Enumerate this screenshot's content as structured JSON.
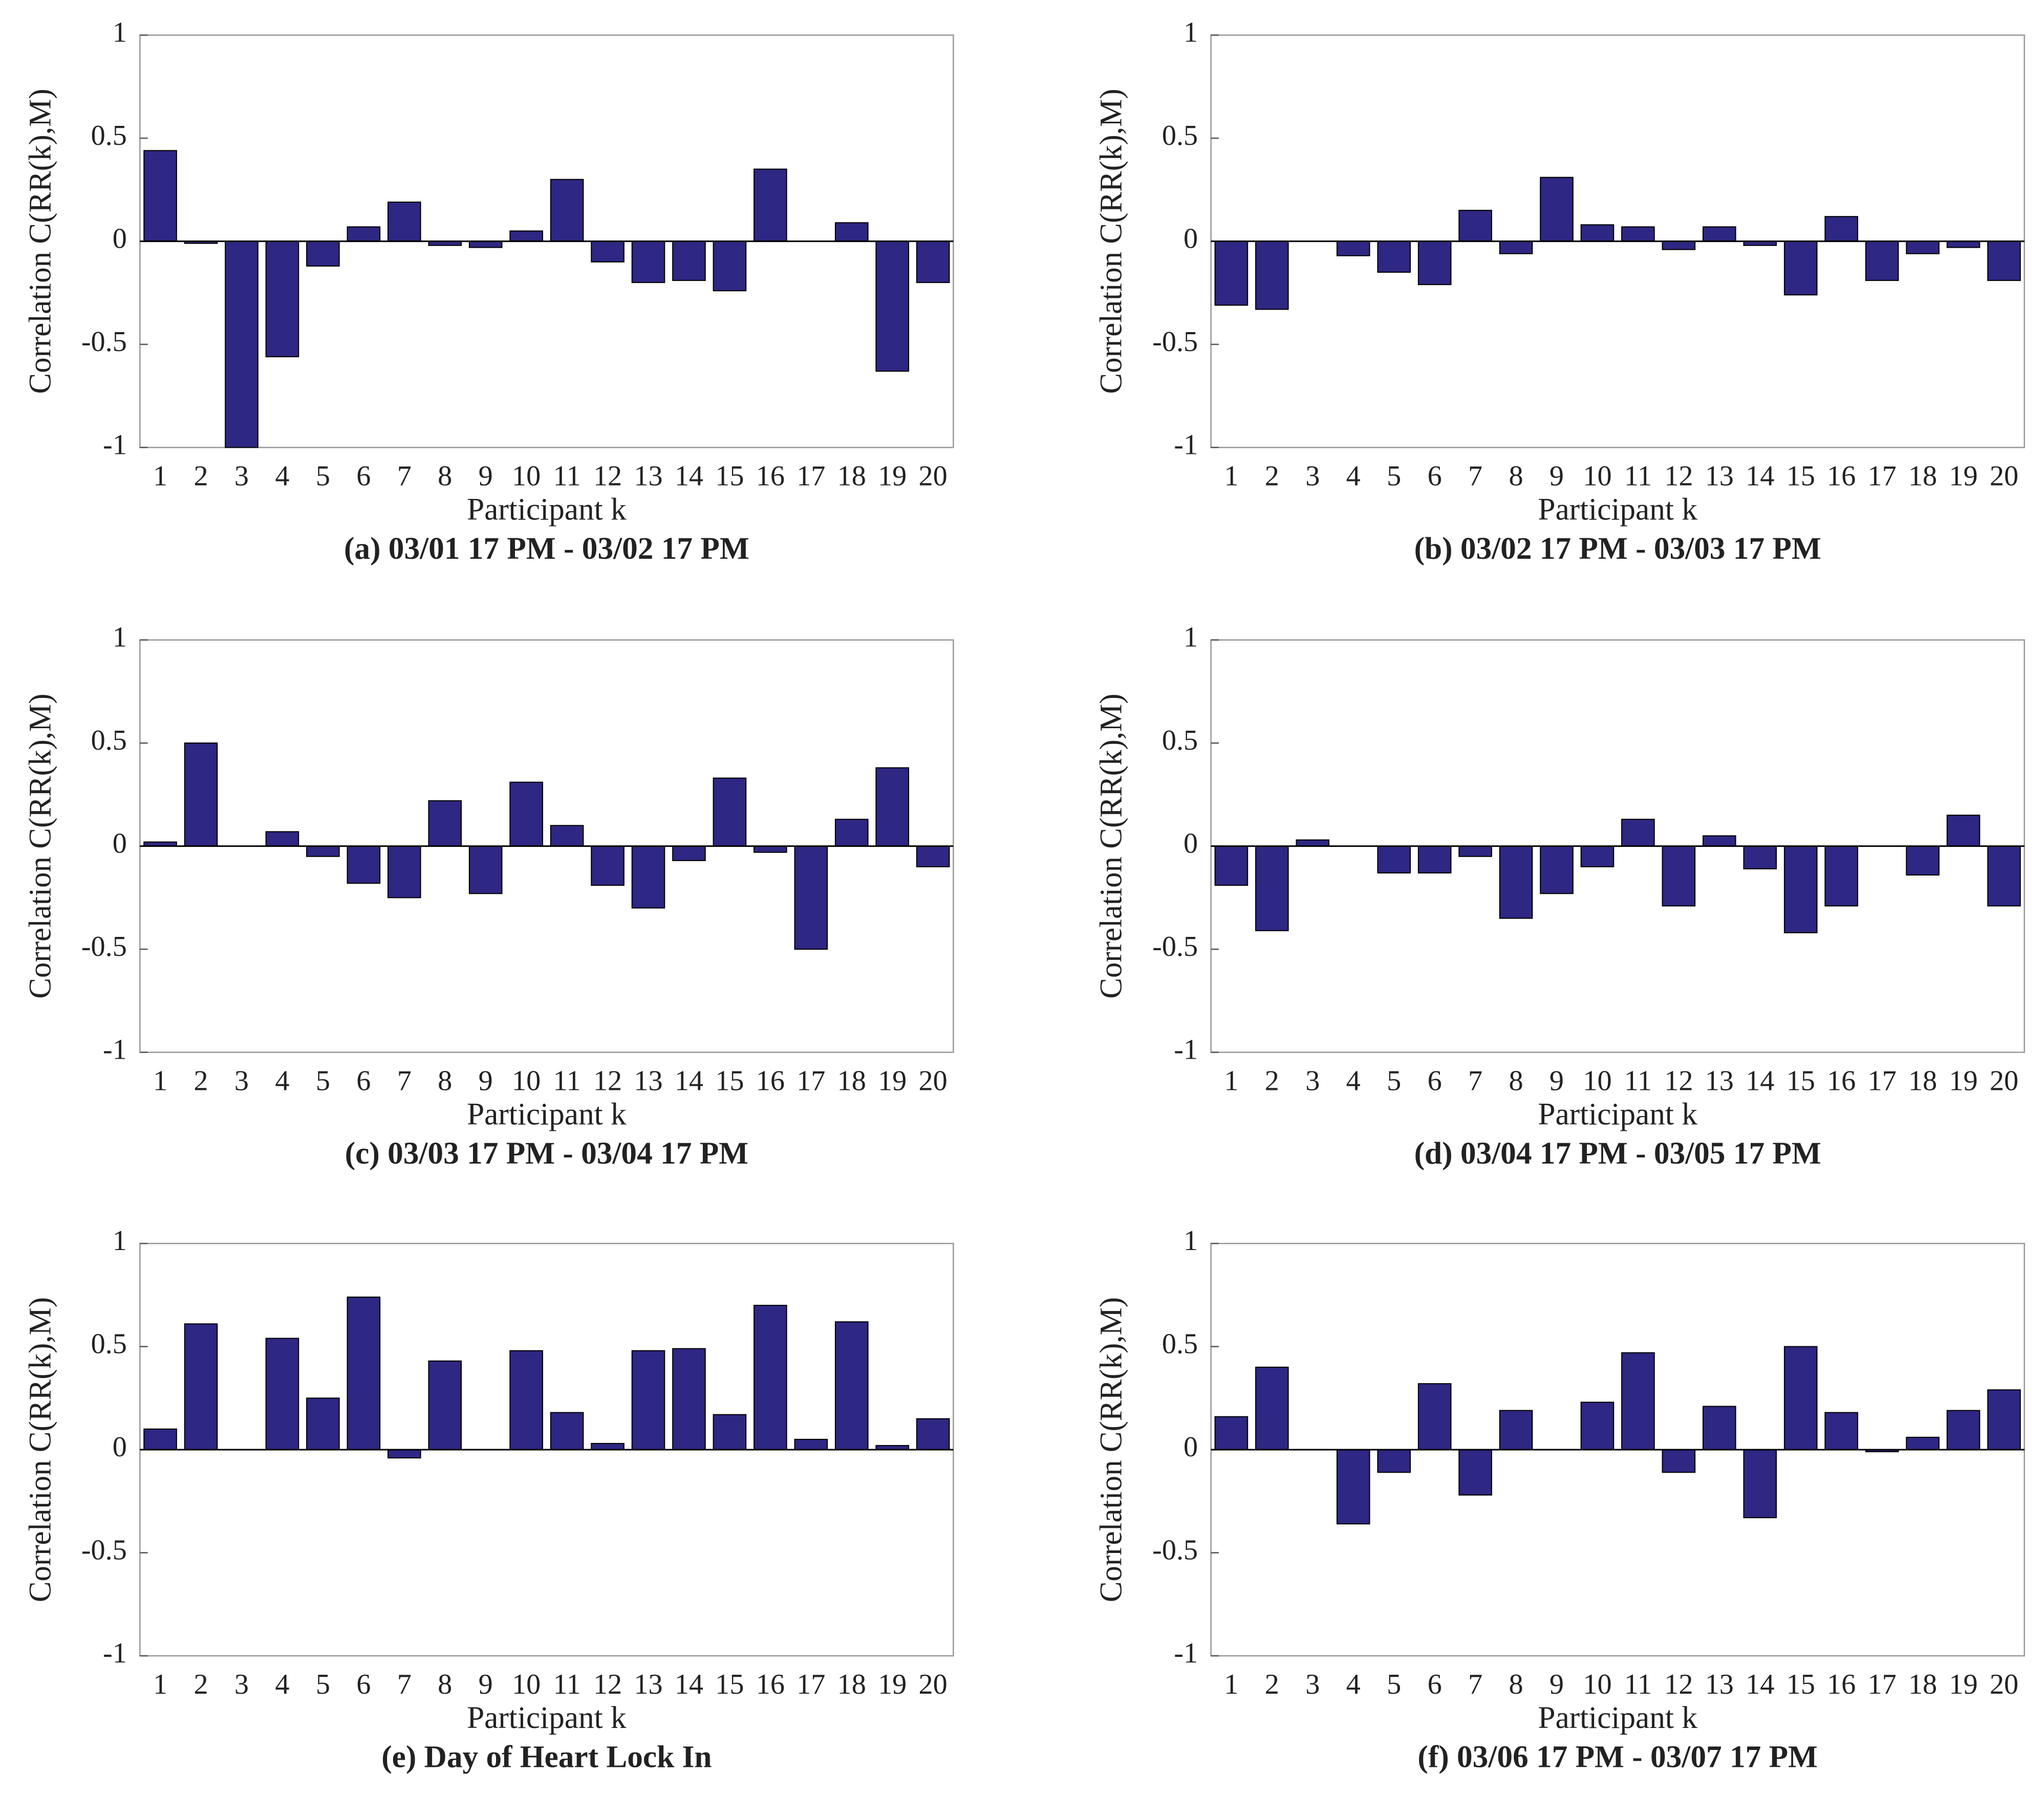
{
  "chart_data": [
    {
      "type": "bar",
      "title": "(a)  03/01 17 PM - 03/02 17 PM",
      "x_label": "Participant k",
      "y_label": "Correlation C(RR(k),M)",
      "categories": [
        "1",
        "2",
        "3",
        "4",
        "5",
        "6",
        "7",
        "8",
        "9",
        "10",
        "11",
        "12",
        "13",
        "14",
        "15",
        "16",
        "17",
        "18",
        "19",
        "20"
      ],
      "values": [
        0.44,
        -0.01,
        -1.0,
        -0.56,
        -0.12,
        0.07,
        0.19,
        -0.02,
        -0.03,
        0.05,
        0.3,
        -0.1,
        -0.2,
        -0.19,
        -0.24,
        0.35,
        0,
        0.09,
        -0.63,
        -0.2
      ],
      "color": "#2e2783",
      "ylim": [
        -1,
        1
      ],
      "yticks": [
        -1,
        -0.5,
        0,
        0.5,
        1
      ]
    },
    {
      "type": "bar",
      "title": "(b)  03/02 17 PM - 03/03 17 PM",
      "x_label": "Participant k",
      "y_label": "Correlation C(RR(k),M)",
      "categories": [
        "1",
        "2",
        "3",
        "4",
        "5",
        "6",
        "7",
        "8",
        "9",
        "10",
        "11",
        "12",
        "13",
        "14",
        "15",
        "16",
        "17",
        "18",
        "19",
        "20"
      ],
      "values": [
        -0.31,
        -0.33,
        0,
        -0.07,
        -0.15,
        -0.21,
        0.15,
        -0.06,
        0.31,
        0.08,
        0.07,
        -0.04,
        0.07,
        -0.02,
        -0.26,
        0.12,
        -0.19,
        -0.06,
        -0.03,
        -0.19
      ],
      "color": "#2e2783",
      "ylim": [
        -1,
        1
      ],
      "yticks": [
        -1,
        -0.5,
        0,
        0.5,
        1
      ]
    },
    {
      "type": "bar",
      "title": "(c)  03/03 17 PM - 03/04 17 PM",
      "x_label": "Participant k",
      "y_label": "Correlation C(RR(k),M)",
      "categories": [
        "1",
        "2",
        "3",
        "4",
        "5",
        "6",
        "7",
        "8",
        "9",
        "10",
        "11",
        "12",
        "13",
        "14",
        "15",
        "16",
        "17",
        "18",
        "19",
        "20"
      ],
      "values": [
        0.02,
        0.5,
        0,
        0.07,
        -0.05,
        -0.18,
        -0.25,
        0.22,
        -0.23,
        0.31,
        0.1,
        -0.19,
        -0.3,
        -0.07,
        0.33,
        -0.03,
        -0.5,
        0.13,
        0.38,
        -0.1
      ],
      "color": "#2e2783",
      "ylim": [
        -1,
        1
      ],
      "yticks": [
        -1,
        -0.5,
        0,
        0.5,
        1
      ]
    },
    {
      "type": "bar",
      "title": "(d)  03/04 17 PM - 03/05 17 PM",
      "x_label": "Participant k",
      "y_label": "Correlation C(RR(k),M)",
      "categories": [
        "1",
        "2",
        "3",
        "4",
        "5",
        "6",
        "7",
        "8",
        "9",
        "10",
        "11",
        "12",
        "13",
        "14",
        "15",
        "16",
        "17",
        "18",
        "19",
        "20"
      ],
      "values": [
        -0.19,
        -0.41,
        0.03,
        0,
        -0.13,
        -0.13,
        -0.05,
        -0.35,
        -0.23,
        -0.1,
        0.13,
        -0.29,
        0.05,
        -0.11,
        -0.42,
        -0.29,
        0,
        -0.14,
        0.15,
        -0.29
      ],
      "color": "#2e2783",
      "ylim": [
        -1,
        1
      ],
      "yticks": [
        -1,
        -0.5,
        0,
        0.5,
        1
      ]
    },
    {
      "type": "bar",
      "title": "(e) Day of Heart Lock In",
      "x_label": "Participant k",
      "y_label": "Correlation C(RR(k),M)",
      "categories": [
        "1",
        "2",
        "3",
        "4",
        "5",
        "6",
        "7",
        "8",
        "9",
        "10",
        "11",
        "12",
        "13",
        "14",
        "15",
        "16",
        "17",
        "18",
        "19",
        "20"
      ],
      "values": [
        0.1,
        0.61,
        0,
        0.54,
        0.25,
        0.74,
        -0.04,
        0.43,
        0,
        0.48,
        0.18,
        0.03,
        0.48,
        0.49,
        0.17,
        0.7,
        0.05,
        0.62,
        0.02,
        0.15
      ],
      "color": "#2e2783",
      "ylim": [
        -1,
        1
      ],
      "yticks": [
        -1,
        -0.5,
        0,
        0.5,
        1
      ]
    },
    {
      "type": "bar",
      "title": "(f)  03/06 17 PM - 03/07 17 PM",
      "x_label": "Participant k",
      "y_label": "Correlation C(RR(k),M)",
      "categories": [
        "1",
        "2",
        "3",
        "4",
        "5",
        "6",
        "7",
        "8",
        "9",
        "10",
        "11",
        "12",
        "13",
        "14",
        "15",
        "16",
        "17",
        "18",
        "19",
        "20"
      ],
      "values": [
        0.16,
        0.4,
        0,
        -0.36,
        -0.11,
        0.32,
        -0.22,
        0.19,
        0,
        0.23,
        0.47,
        -0.11,
        0.21,
        -0.33,
        0.5,
        0.18,
        -0.01,
        0.06,
        0.19,
        0.29
      ],
      "color": "#2e2783",
      "ylim": [
        -1,
        1
      ],
      "yticks": [
        -1,
        -0.5,
        0,
        0.5,
        1
      ]
    }
  ]
}
